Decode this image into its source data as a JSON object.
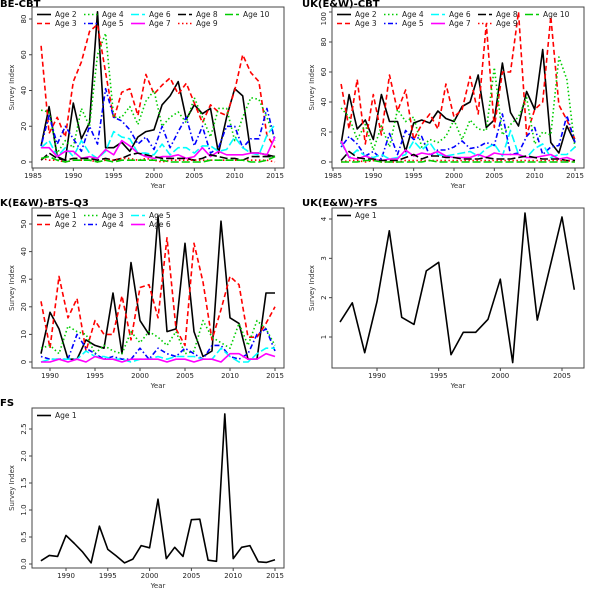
{
  "styles": {
    "Age 1": {
      "color": "#000000",
      "dash": "solid"
    },
    "Age 2": {
      "color": "#ff0000",
      "dash": "dashed"
    },
    "Age 3": {
      "color": "#00cd00",
      "dash": "dotted"
    },
    "Age 4": {
      "color": "#0000ff",
      "dash": "dotdash"
    },
    "Age 5": {
      "color": "#00ffff",
      "dash": "longdash"
    },
    "Age 6": {
      "color": "#ff00ff",
      "dash": "solid"
    }
  },
  "styles_cbt": {
    "Age 2": {
      "color": "#000000",
      "dash": "solid"
    },
    "Age 3": {
      "color": "#ff0000",
      "dash": "dashed"
    },
    "Age 4": {
      "color": "#00cd00",
      "dash": "dotted"
    },
    "Age 5": {
      "color": "#0000ff",
      "dash": "dotdash"
    },
    "Age 6": {
      "color": "#00ffff",
      "dash": "longdash"
    },
    "Age 7": {
      "color": "#ff00ff",
      "dash": "solid"
    },
    "Age 8": {
      "color": "#000000",
      "dash": "longdash"
    },
    "Age 9": {
      "color": "#ff0000",
      "dash": "dotted"
    },
    "Age 10": {
      "color": "#00cd00",
      "dash": "longdash"
    }
  },
  "chart_data": [
    {
      "type": "line",
      "title": "BE-CBT",
      "xlabel": "Year",
      "ylabel": "Survey Index",
      "x_start": 1986,
      "xticks": [
        1985,
        1990,
        1995,
        2000,
        2005,
        2010,
        2015
      ],
      "yticks": [
        0,
        20,
        40,
        60,
        80
      ],
      "legend": "top",
      "legend_columns": 5,
      "style_set": "styles_cbt",
      "series": [
        {
          "name": "Age 2",
          "values": [
            9,
            31,
            3,
            1,
            33,
            13,
            22,
            84,
            8,
            8,
            11,
            6,
            14,
            17,
            18,
            32,
            37,
            45,
            24,
            32,
            27,
            30,
            5,
            25,
            41,
            37,
            5,
            5,
            4,
            3
          ]
        },
        {
          "name": "Age 3",
          "values": [
            65,
            16,
            25,
            14,
            45,
            56,
            73,
            77,
            50,
            24,
            39,
            41,
            26,
            49,
            38,
            43,
            47,
            38,
            44,
            33,
            22,
            32,
            28,
            26,
            40,
            60,
            50,
            45,
            15,
            8
          ]
        },
        {
          "name": "Age 4",
          "values": [
            29,
            28,
            5,
            12,
            8,
            30,
            20,
            60,
            72,
            25,
            25,
            31,
            21,
            34,
            40,
            20,
            25,
            28,
            22,
            36,
            25,
            14,
            30,
            30,
            12,
            25,
            36,
            35,
            25,
            13
          ]
        },
        {
          "name": "Age 5",
          "values": [
            9,
            26,
            10,
            20,
            13,
            6,
            20,
            10,
            41,
            25,
            23,
            18,
            10,
            14,
            7,
            20,
            8,
            17,
            25,
            9,
            20,
            5,
            8,
            20,
            20,
            8,
            13,
            13,
            30,
            12
          ]
        },
        {
          "name": "Age 6",
          "values": [
            8,
            12,
            3,
            8,
            3,
            12,
            5,
            2,
            6,
            17,
            14,
            13,
            5,
            5,
            4,
            10,
            4,
            8,
            8,
            5,
            9,
            9,
            6,
            7,
            14,
            8,
            5,
            4,
            15,
            21
          ]
        },
        {
          "name": "Age 7",
          "values": [
            8,
            8,
            3,
            6,
            6,
            2,
            3,
            2,
            7,
            4,
            12,
            9,
            5,
            3,
            2,
            3,
            3,
            4,
            2,
            3,
            8,
            3,
            6,
            4,
            4,
            4,
            5,
            5,
            4,
            14
          ]
        },
        {
          "name": "Age 8",
          "values": [
            1,
            5,
            2,
            1,
            2,
            2,
            2,
            1,
            2,
            1,
            2,
            4,
            5,
            4,
            3,
            2,
            2,
            2,
            2,
            1,
            2,
            4,
            3,
            2,
            2,
            1,
            3,
            3,
            3,
            3
          ]
        },
        {
          "name": "Age 9",
          "values": [
            2,
            1,
            1,
            0,
            1,
            1,
            1,
            0,
            1,
            1,
            2,
            2,
            1,
            2,
            1,
            0,
            1,
            1,
            1,
            1,
            1,
            1,
            1,
            1,
            1,
            1,
            1,
            1,
            1,
            0
          ]
        },
        {
          "name": "Age 10",
          "values": [
            2,
            3,
            1,
            0,
            1,
            1,
            1,
            0,
            1,
            0,
            1,
            1,
            1,
            1,
            1,
            1,
            0,
            0,
            0,
            0,
            0,
            1,
            1,
            1,
            1,
            1,
            0,
            0,
            1,
            3
          ]
        }
      ]
    },
    {
      "type": "line",
      "title": "UK(E&W)-CBT",
      "xlabel": "Year",
      "ylabel": "Survey Index",
      "x_start": 1986,
      "xticks": [
        1985,
        1990,
        1995,
        2000,
        2005,
        2010,
        2015
      ],
      "yticks": [
        0,
        20,
        40,
        60,
        80,
        100
      ],
      "legend": "top",
      "legend_columns": 5,
      "style_set": "styles_cbt",
      "series": [
        {
          "name": "Age 2",
          "values": [
            12,
            45,
            22,
            28,
            15,
            45,
            27,
            27,
            7,
            26,
            28,
            26,
            34,
            29,
            27,
            37,
            40,
            58,
            23,
            28,
            66,
            33,
            24,
            47,
            35,
            75,
            13,
            6,
            24,
            13
          ]
        },
        {
          "name": "Age 3",
          "values": [
            52,
            22,
            55,
            12,
            45,
            18,
            58,
            34,
            48,
            15,
            25,
            32,
            22,
            52,
            30,
            35,
            57,
            32,
            92,
            23,
            60,
            60,
            100,
            18,
            35,
            40,
            97,
            38,
            28,
            15
          ]
        },
        {
          "name": "Age 4",
          "values": [
            36,
            30,
            15,
            25,
            8,
            24,
            10,
            35,
            27,
            30,
            10,
            15,
            13,
            17,
            28,
            15,
            28,
            22,
            21,
            63,
            18,
            25,
            30,
            43,
            12,
            20,
            18,
            70,
            55,
            9
          ]
        },
        {
          "name": "Age 5",
          "values": [
            10,
            17,
            12,
            4,
            7,
            2,
            19,
            5,
            21,
            15,
            17,
            4,
            8,
            8,
            10,
            14,
            9,
            10,
            13,
            11,
            32,
            5,
            6,
            17,
            23,
            5,
            10,
            11,
            31,
            13
          ]
        },
        {
          "name": "Age 6",
          "values": [
            13,
            3,
            8,
            4,
            3,
            5,
            2,
            3,
            5,
            14,
            8,
            13,
            5,
            4,
            5,
            6,
            7,
            4,
            9,
            12,
            4,
            21,
            5,
            3,
            9,
            12,
            3,
            5,
            5,
            10
          ]
        },
        {
          "name": "Age 7",
          "values": [
            14,
            3,
            2,
            4,
            2,
            1,
            2,
            2,
            8,
            4,
            6,
            5,
            7,
            4,
            3,
            3,
            3,
            5,
            3,
            6,
            5,
            5,
            5,
            3,
            3,
            4,
            5,
            2,
            3,
            1
          ]
        },
        {
          "name": "Age 8",
          "values": [
            1,
            7,
            3,
            2,
            2,
            1,
            1,
            1,
            3,
            5,
            2,
            4,
            4,
            3,
            3,
            2,
            2,
            2,
            3,
            2,
            2,
            2,
            3,
            4,
            3,
            2,
            2,
            2,
            1,
            1
          ]
        },
        {
          "name": "Age 9",
          "values": [
            0,
            1,
            1,
            0,
            1,
            0,
            0,
            0,
            1,
            1,
            1,
            1,
            1,
            1,
            1,
            1,
            1,
            1,
            1,
            1,
            1,
            1,
            1,
            1,
            1,
            1,
            1,
            1,
            1,
            0
          ]
        },
        {
          "name": "Age 10",
          "values": [
            0,
            0,
            0,
            1,
            1,
            0,
            0,
            0,
            0,
            0,
            0,
            1,
            0,
            0,
            0,
            0,
            0,
            0,
            0,
            0,
            0,
            0,
            0,
            0,
            0,
            0,
            0,
            0,
            0,
            0
          ]
        }
      ]
    },
    {
      "type": "line",
      "title": "K(E&W)-BTS-Q3",
      "xlabel": "Year",
      "ylabel": "Survey Index",
      "x_start": 1989,
      "xticks": [
        1990,
        1995,
        2000,
        2005,
        2010,
        2015
      ],
      "yticks": [
        0,
        10,
        20,
        30,
        40,
        50
      ],
      "legend": "top-left",
      "legend_columns": 3,
      "style_set": "styles",
      "series": [
        {
          "name": "Age 1",
          "values": [
            3,
            18,
            12,
            1,
            1,
            8,
            6,
            5,
            25,
            3,
            36,
            15,
            10,
            53,
            11,
            12,
            43,
            11,
            2,
            4,
            51,
            16,
            14,
            1,
            1,
            25,
            25
          ]
        },
        {
          "name": "Age 2",
          "values": [
            22,
            5,
            31,
            16,
            23,
            4,
            15,
            10,
            10,
            24,
            8,
            27,
            28,
            16,
            45,
            12,
            6,
            43,
            29,
            8,
            19,
            31,
            28,
            9,
            9,
            14,
            20
          ]
        },
        {
          "name": "Age 3",
          "values": [
            5,
            6,
            3,
            13,
            11,
            10,
            3,
            6,
            4,
            3,
            11,
            7,
            11,
            9,
            6,
            11,
            3,
            4,
            15,
            9,
            7,
            5,
            14,
            6,
            15,
            12,
            6
          ]
        },
        {
          "name": "Age 4",
          "values": [
            2,
            1,
            1,
            1,
            10,
            5,
            3,
            1,
            2,
            1,
            1,
            5,
            1,
            5,
            3,
            2,
            5,
            3,
            1,
            6,
            6,
            2,
            1,
            3,
            10,
            12,
            4
          ]
        },
        {
          "name": "Age 5",
          "values": [
            0,
            1,
            1,
            1,
            1,
            4,
            2,
            2,
            1,
            1,
            0,
            1,
            1,
            2,
            1,
            2,
            2,
            2,
            1,
            1,
            5,
            2,
            0,
            0,
            3,
            5,
            5
          ]
        },
        {
          "name": "Age 6",
          "values": [
            0,
            0,
            1,
            0,
            1,
            0,
            2,
            1,
            1,
            0,
            1,
            1,
            1,
            1,
            0,
            1,
            1,
            0,
            1,
            1,
            0,
            3,
            3,
            1,
            1,
            3,
            2
          ]
        }
      ]
    },
    {
      "type": "line",
      "title": "UK(E&W)-YFS",
      "xlabel": "Year",
      "ylabel": "Survey Index",
      "x_start": 1987,
      "xticks": [
        1990,
        1995,
        2000,
        2005
      ],
      "yticks": [
        1,
        2,
        3,
        4
      ],
      "legend": "top-left",
      "legend_columns": 1,
      "style_set": "styles",
      "series": [
        {
          "name": "Age 1",
          "values": [
            1.38,
            1.87,
            0.6,
            1.9,
            3.7,
            1.5,
            1.32,
            2.68,
            2.9,
            0.55,
            1.12,
            1.12,
            1.45,
            2.47,
            0.35,
            4.15,
            1.43,
            2.75,
            4.05,
            2.2
          ]
        }
      ]
    },
    {
      "type": "line",
      "title": "FS",
      "xlabel": "Year",
      "ylabel": "Survey Index",
      "x_start": 1987,
      "xticks": [
        1990,
        1995,
        2000,
        2005,
        2010,
        2015
      ],
      "yticks": [
        0.0,
        0.5,
        1.0,
        1.5,
        2.0,
        2.5
      ],
      "ytick_labels": [
        "0.0",
        "0.5",
        "1.0",
        "1.5",
        "2.0",
        "2.5"
      ],
      "legend": "top-left",
      "legend_columns": 1,
      "style_set": "styles",
      "series": [
        {
          "name": "Age 1",
          "values": [
            0.06,
            0.16,
            0.14,
            0.53,
            0.38,
            0.22,
            0.02,
            0.7,
            0.27,
            0.15,
            0.02,
            0.09,
            0.34,
            0.3,
            1.2,
            0.1,
            0.31,
            0.14,
            0.82,
            0.83,
            0.07,
            0.05,
            2.78,
            0.1,
            0.31,
            0.34,
            0.04,
            0.03,
            0.08
          ]
        }
      ]
    }
  ]
}
